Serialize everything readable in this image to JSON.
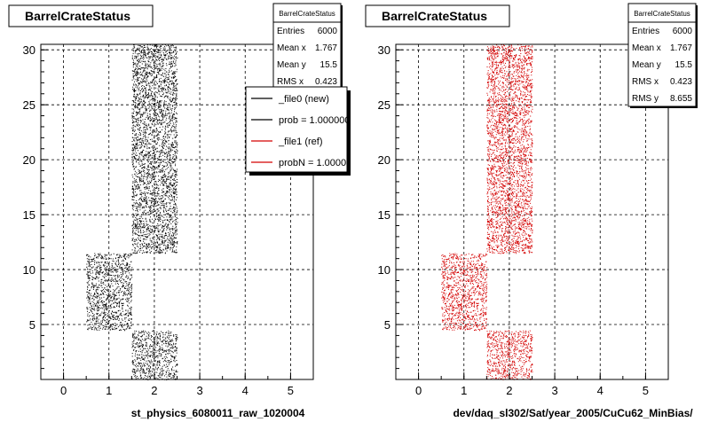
{
  "colors": {
    "file0": "#000000",
    "file1": "#d40000",
    "grid": "#000000",
    "background": "#ffffff"
  },
  "chart_data": [
    {
      "type": "scatter",
      "title": "BarrelCrateStatus",
      "xlabel": "st_physics_6080011_raw_1020004",
      "ylabel": "",
      "xlim": [
        -0.5,
        5.5
      ],
      "ylim": [
        0,
        30.5
      ],
      "xticks": [
        0,
        1,
        2,
        3,
        4,
        5
      ],
      "yticks": [
        5,
        10,
        15,
        20,
        25,
        30
      ],
      "grid": true,
      "marker_color": "#000000",
      "regions": [
        {
          "x": [
            1.5,
            2.5
          ],
          "y": [
            11.5,
            30.5
          ],
          "points": 3300
        },
        {
          "x": [
            0.5,
            1.5
          ],
          "y": [
            4.5,
            11.5
          ],
          "points": 1100
        },
        {
          "x": [
            1.5,
            2.5
          ],
          "y": [
            0,
            4.5
          ],
          "points": 700
        }
      ],
      "stats": {
        "title": "BarrelCrateStatus",
        "rows": [
          {
            "label": "Entries",
            "value": "6000"
          },
          {
            "label": "Mean x",
            "value": "1.767"
          },
          {
            "label": "Mean y",
            "value": "15.5"
          },
          {
            "label": "RMS x",
            "value": "0.423"
          }
        ]
      },
      "legend": {
        "placement": "top-right",
        "entries": [
          {
            "label": "_file0 (new)",
            "color": "#000000"
          },
          {
            "label": "prob = 1.000000",
            "color": "#000000"
          },
          {
            "label": "_file1 (ref)",
            "color": "#d40000"
          },
          {
            "label": "probN = 1.000000",
            "color": "#d40000"
          }
        ]
      }
    },
    {
      "type": "scatter",
      "title": "BarrelCrateStatus",
      "xlabel": "dev/daq_sl302/Sat/year_2005/CuCu62_MinBias/",
      "ylabel": "",
      "xlim": [
        -0.5,
        5.5
      ],
      "ylim": [
        0,
        30.5
      ],
      "xticks": [
        0,
        1,
        2,
        3,
        4,
        5
      ],
      "yticks": [
        5,
        10,
        15,
        20,
        25,
        30
      ],
      "grid": true,
      "marker_color": "#d40000",
      "regions": [
        {
          "x": [
            1.5,
            2.5
          ],
          "y": [
            11.5,
            30.5
          ],
          "points": 3300
        },
        {
          "x": [
            0.5,
            1.5
          ],
          "y": [
            4.5,
            11.5
          ],
          "points": 1100
        },
        {
          "x": [
            1.5,
            2.5
          ],
          "y": [
            0,
            4.5
          ],
          "points": 700
        }
      ],
      "stats": {
        "title": "BarrelCrateStatus",
        "rows": [
          {
            "label": "Entries",
            "value": "6000"
          },
          {
            "label": "Mean x",
            "value": "1.767"
          },
          {
            "label": "Mean y",
            "value": "15.5"
          },
          {
            "label": "RMS x",
            "value": "0.423"
          },
          {
            "label": "RMS y",
            "value": "8.655"
          }
        ]
      }
    }
  ]
}
